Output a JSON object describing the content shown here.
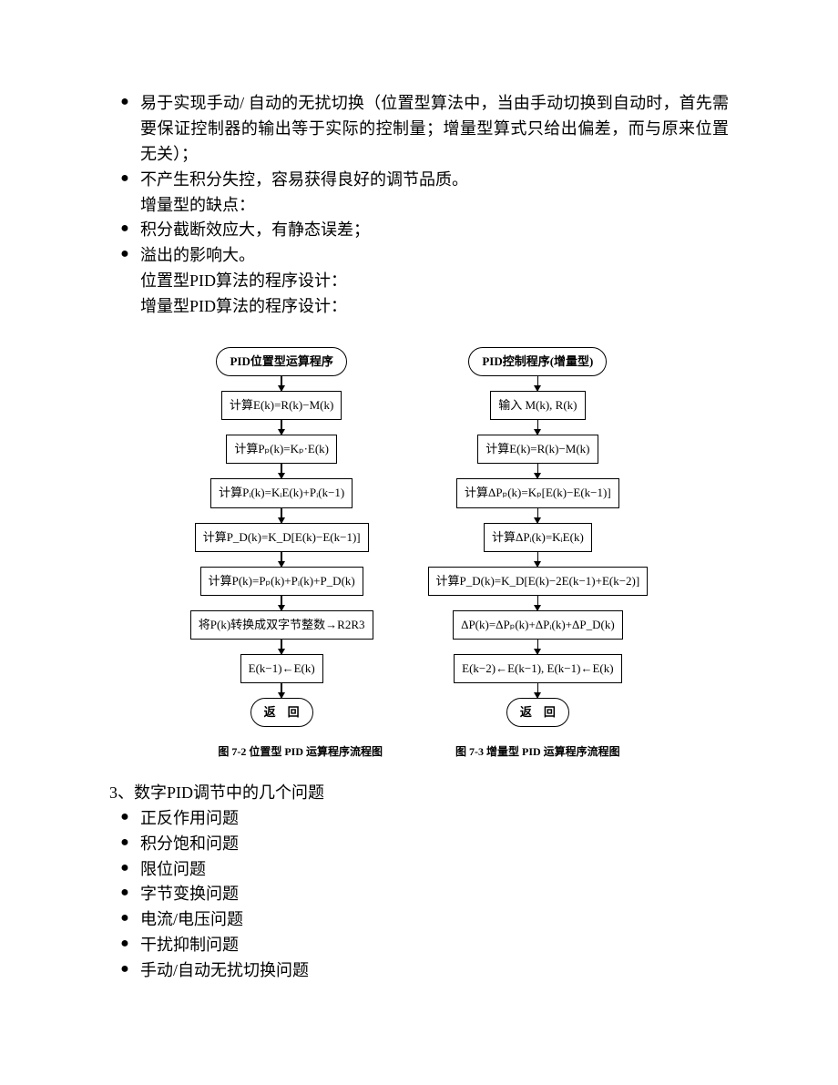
{
  "top_bullets": [
    "易于实现手动/ 自动的无扰切换（位置型算法中，当由手动切换到自动时，首先需要保证控制器的输出等于实际的控制量；增量型算式只给出偏差，而与原来位置无关）；",
    "不产生积分失控，容易获得良好的调节品质。"
  ],
  "inc_drawback_title": "增量型的缺点：",
  "inc_drawbacks": [
    "积分截断效应大，有静态误差；",
    "溢出的影响大。"
  ],
  "prog_lines": [
    "位置型PID算法的程序设计：",
    "增量型PID算法的程序设计："
  ],
  "flowcharts": {
    "left": {
      "terminator": "PID位置型运算程序",
      "steps": [
        "计算E(k)=R(k)−M(k)",
        "计算Pₚ(k)=Kₚ·E(k)",
        "计算Pᵢ(k)=KᵢE(k)+Pᵢ(k−1)",
        "计算P_D(k)=K_D[E(k)−E(k−1)]",
        "计算P(k)=Pₚ(k)+Pᵢ(k)+P_D(k)",
        "将P(k)转换成双字节整数→R2R3",
        "E(k−1)←E(k)"
      ],
      "end": "返　回",
      "caption": "图 7-2  位置型 PID 运算程序流程图"
    },
    "right": {
      "terminator": "PID控制程序(增量型)",
      "steps": [
        "输入 M(k), R(k)",
        "计算E(k)=R(k)−M(k)",
        "计算ΔPₚ(k)=Kₚ[E(k)−E(k−1)]",
        "计算ΔPᵢ(k)=KᵢE(k)",
        "计算P_D(k)=K_D[E(k)−2E(k−1)+E(k−2)]",
        "ΔP(k)=ΔPₚ(k)+ΔPᵢ(k)+ΔP_D(k)",
        "E(k−2)←E(k−1), E(k−1)←E(k)"
      ],
      "end": "返　回",
      "caption": "图 7-3  增量型 PID 运算程序流程图"
    }
  },
  "section3_title": "3、数字PID调节中的几个问题",
  "section3_bullets": [
    "正反作用问题",
    "积分饱和问题",
    "限位问题",
    "字节变换问题",
    "电流/电压问题",
    "干扰抑制问题",
    "手动/自动无扰切换问题"
  ]
}
